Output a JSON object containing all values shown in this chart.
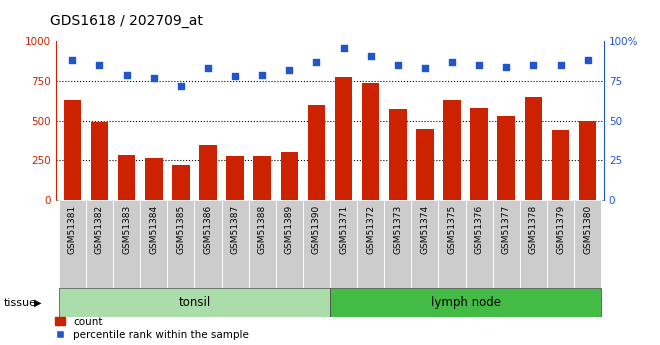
{
  "title": "GDS1618 / 202709_at",
  "samples": [
    "GSM51381",
    "GSM51382",
    "GSM51383",
    "GSM51384",
    "GSM51385",
    "GSM51386",
    "GSM51387",
    "GSM51388",
    "GSM51389",
    "GSM51390",
    "GSM51371",
    "GSM51372",
    "GSM51373",
    "GSM51374",
    "GSM51375",
    "GSM51376",
    "GSM51377",
    "GSM51378",
    "GSM51379",
    "GSM51380"
  ],
  "counts": [
    630,
    495,
    285,
    265,
    220,
    350,
    275,
    275,
    300,
    600,
    775,
    740,
    575,
    450,
    630,
    580,
    530,
    650,
    440,
    500
  ],
  "percentiles": [
    88,
    85,
    79,
    77,
    72,
    83,
    78,
    79,
    82,
    87,
    96,
    91,
    85,
    83,
    87,
    85,
    84,
    85,
    85,
    88
  ],
  "tonsil_count": 10,
  "lymph_count": 10,
  "bar_color": "#cc2200",
  "dot_color": "#2255cc",
  "tonsil_bg": "#aaddaa",
  "lymph_bg": "#44bb44",
  "label_bg": "#cccccc",
  "ylim_left": [
    0,
    1000
  ],
  "ylim_right": [
    0,
    100
  ],
  "yticks_left": [
    0,
    250,
    500,
    750,
    1000
  ],
  "yticks_right": [
    0,
    25,
    50,
    75,
    100
  ],
  "grid_values": [
    250,
    500,
    750
  ],
  "legend_count": "count",
  "legend_pct": "percentile rank within the sample",
  "tissue_label": "tissue"
}
